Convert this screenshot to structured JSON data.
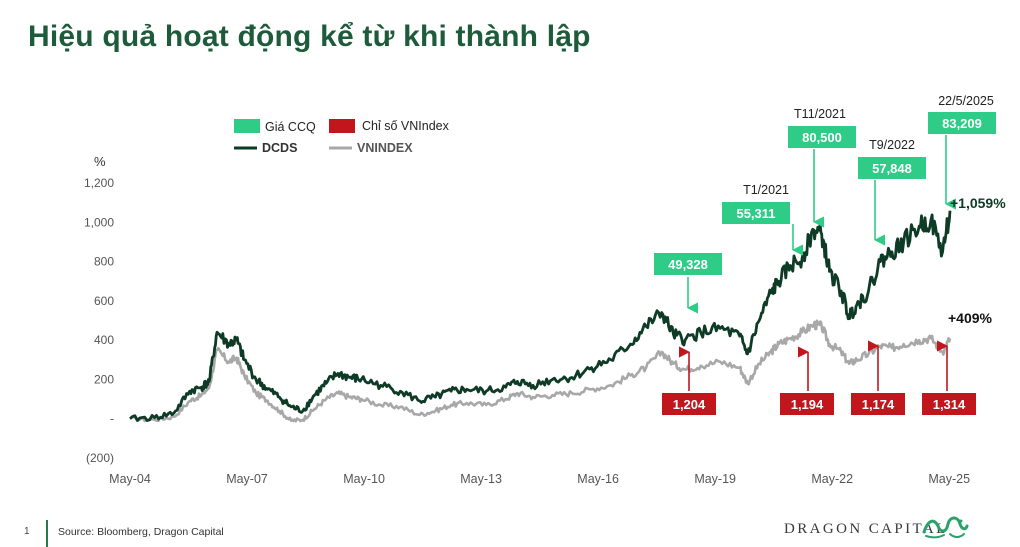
{
  "title": "Hiệu quả hoạt động kể từ khi thành lập",
  "footer": {
    "page_number": "1",
    "source": "Source: Bloomberg, Dragon Capital",
    "brand": "DRAGON CAPITAL"
  },
  "chart_data": {
    "type": "line",
    "ylabel": "%",
    "ylim": [
      -200,
      1200
    ],
    "y_ticks": [
      -200,
      0,
      200,
      400,
      600,
      800,
      1000,
      1200
    ],
    "y_tick_labels": [
      "(200)",
      "-",
      "200",
      "400",
      "600",
      "800",
      "1,000",
      "1,200"
    ],
    "x_tick_labels": [
      "May-04",
      "May-07",
      "May-10",
      "May-13",
      "May-16",
      "May-19",
      "May-22",
      "May-25"
    ],
    "x_tick_years": [
      2004.37,
      2007.37,
      2010.37,
      2013.37,
      2016.37,
      2019.37,
      2022.37,
      2025.37
    ],
    "x_range": [
      2004.37,
      2025.39
    ],
    "legend": [
      {
        "label": "Giá CCQ",
        "color": "#2ecc87",
        "shape": "box"
      },
      {
        "label": "Chỉ số VNIndex",
        "color": "#c0161c",
        "shape": "box"
      },
      {
        "label": "DCDS",
        "color": "#0e3b26",
        "shape": "line"
      },
      {
        "label": "VNINDEX",
        "color": "#a8a8a8",
        "shape": "line"
      }
    ],
    "legend_position": "top-left",
    "series": [
      {
        "name": "DCDS",
        "color": "#0e3b26",
        "x": [
          2004.37,
          2005.0,
          2005.5,
          2005.9,
          2006.2,
          2006.4,
          2006.6,
          2006.9,
          2007.1,
          2007.3,
          2007.6,
          2007.9,
          2008.2,
          2008.5,
          2008.8,
          2009.1,
          2009.4,
          2009.7,
          2010.0,
          2010.3,
          2010.8,
          2011.3,
          2011.8,
          2012.2,
          2012.6,
          2013.0,
          2013.5,
          2014.0,
          2014.3,
          2014.7,
          2015.2,
          2015.7,
          2016.2,
          2016.7,
          2017.2,
          2017.6,
          2018.0,
          2018.3,
          2018.6,
          2019.0,
          2019.5,
          2020.0,
          2020.2,
          2020.5,
          2020.8,
          2021.0,
          2021.3,
          2021.6,
          2021.9,
          2022.1,
          2022.3,
          2022.6,
          2022.8,
          2023.0,
          2023.3,
          2023.6,
          2023.9,
          2024.2,
          2024.6,
          2024.9,
          2025.2,
          2025.39
        ],
        "values": [
          0,
          5,
          30,
          140,
          160,
          190,
          440,
          380,
          400,
          300,
          200,
          150,
          110,
          60,
          40,
          120,
          180,
          230,
          210,
          200,
          170,
          140,
          90,
          110,
          140,
          150,
          140,
          160,
          190,
          170,
          200,
          210,
          260,
          300,
          380,
          470,
          540,
          430,
          400,
          440,
          460,
          420,
          330,
          500,
          640,
          700,
          780,
          820,
          960,
          940,
          750,
          650,
          520,
          580,
          650,
          800,
          850,
          900,
          980,
          1010,
          850,
          1059
        ]
      },
      {
        "name": "VNINDEX",
        "color": "#a8a8a8",
        "x": [
          2004.37,
          2005.0,
          2005.5,
          2005.9,
          2006.2,
          2006.4,
          2006.6,
          2006.9,
          2007.1,
          2007.3,
          2007.6,
          2007.9,
          2008.2,
          2008.5,
          2008.8,
          2009.1,
          2009.4,
          2009.7,
          2010.0,
          2010.3,
          2010.8,
          2011.3,
          2011.8,
          2012.2,
          2012.6,
          2013.0,
          2013.5,
          2014.0,
          2014.3,
          2014.7,
          2015.2,
          2015.7,
          2016.2,
          2016.7,
          2017.2,
          2017.6,
          2018.0,
          2018.3,
          2018.6,
          2019.0,
          2019.5,
          2020.0,
          2020.2,
          2020.5,
          2020.8,
          2021.0,
          2021.3,
          2021.6,
          2021.9,
          2022.1,
          2022.3,
          2022.6,
          2022.8,
          2023.0,
          2023.3,
          2023.6,
          2023.9,
          2024.2,
          2024.6,
          2024.9,
          2025.2,
          2025.39
        ],
        "values": [
          0,
          -5,
          10,
          90,
          120,
          160,
          350,
          290,
          310,
          220,
          130,
          90,
          40,
          -10,
          -5,
          50,
          100,
          130,
          110,
          100,
          70,
          60,
          20,
          40,
          70,
          80,
          70,
          100,
          130,
          110,
          120,
          130,
          150,
          170,
          220,
          260,
          340,
          280,
          250,
          270,
          290,
          260,
          180,
          280,
          340,
          380,
          410,
          440,
          480,
          470,
          380,
          340,
          280,
          300,
          330,
          370,
          360,
          380,
          400,
          410,
          340,
          409
        ]
      }
    ],
    "annotations": [
      {
        "series": "DCDS",
        "text": "49,328",
        "date": "",
        "x": 2018.3,
        "y": 430,
        "type": "fund"
      },
      {
        "series": "DCDS",
        "text": "55,311",
        "date": "T1/2021",
        "x": 2020.9,
        "y": 660,
        "type": "fund"
      },
      {
        "series": "DCDS",
        "text": "80,500",
        "date": "T11/2021",
        "x": 2021.9,
        "y": 960,
        "type": "fund"
      },
      {
        "series": "DCDS",
        "text": "57,848",
        "date": "T9/2022",
        "x": 2022.9,
        "y": 680,
        "type": "fund"
      },
      {
        "series": "DCDS",
        "text": "83,209",
        "date": "22/5/2025",
        "x": 2025.3,
        "y": 1059,
        "type": "fund"
      },
      {
        "series": "VNINDEX",
        "text": "1,204",
        "date": "",
        "x": 2018.3,
        "y": 340,
        "type": "index"
      },
      {
        "series": "VNINDEX",
        "text": "1,194",
        "date": "",
        "x": 2021.9,
        "y": 360,
        "type": "index"
      },
      {
        "series": "VNINDEX",
        "text": "1,174",
        "date": "",
        "x": 2022.9,
        "y": 370,
        "type": "index"
      },
      {
        "series": "VNINDEX",
        "text": "1,314",
        "date": "",
        "x": 2025.3,
        "y": 370,
        "type": "index"
      }
    ],
    "end_labels": [
      {
        "series": "DCDS",
        "text": "+1,059%"
      },
      {
        "series": "VNINDEX",
        "text": "+409%"
      }
    ],
    "grid": false
  }
}
